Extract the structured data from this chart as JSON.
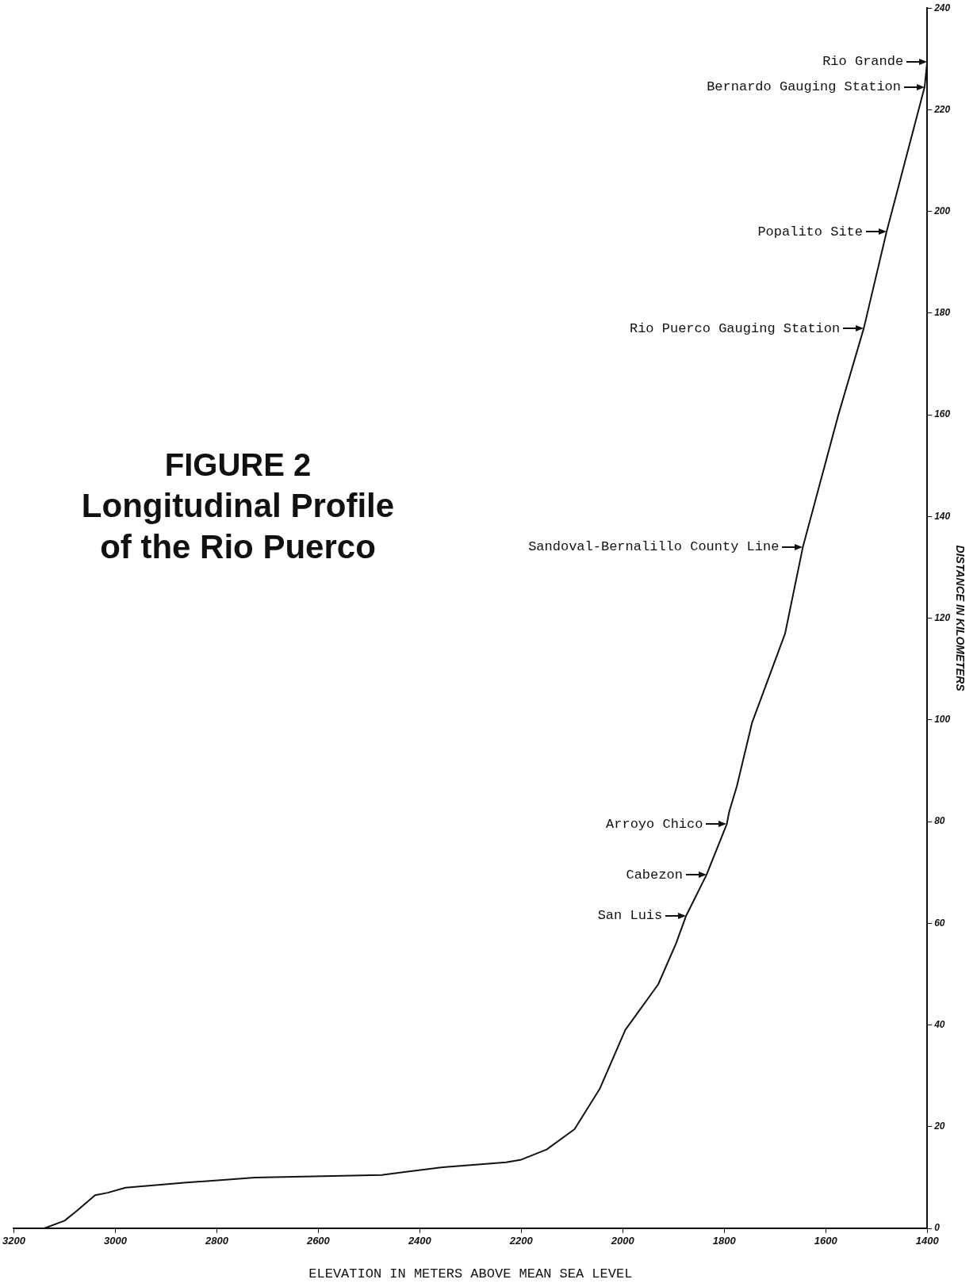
{
  "chart_data": {
    "type": "line",
    "title": "FIGURE 2",
    "subtitle": "Longitudinal Profile of the Rio Puerco",
    "xlabel": "ELEVATION IN METERS ABOVE MEAN SEA LEVEL",
    "ylabel": "DISTANCE IN KILOMETERS",
    "x": [
      3140,
      3100,
      3075,
      3040,
      3015,
      2980,
      2860,
      2725,
      2475,
      2355,
      2230,
      2200,
      2150,
      2095,
      2045,
      1995,
      1930,
      1895,
      1875,
      1835,
      1795,
      1790,
      1775,
      1745,
      1680,
      1645,
      1575,
      1525,
      1480,
      1405,
      1400
    ],
    "series": [
      {
        "color": "#111111",
        "values": [
          0,
          1.5,
          3.5,
          6.5,
          7,
          8,
          9,
          10,
          10.5,
          12,
          13,
          13.5,
          15.5,
          19.5,
          27.5,
          39,
          48,
          56,
          61.5,
          69.5,
          79.5,
          82,
          87,
          99.5,
          117,
          134,
          160,
          177,
          196,
          224.5,
          229.5
        ]
      }
    ],
    "xlim": [
      3200,
      1400
    ],
    "xticks": [
      3200,
      3000,
      2800,
      2600,
      2400,
      2200,
      2000,
      1800,
      1600,
      1400
    ],
    "ylim": [
      0,
      240
    ],
    "yticks": [
      0,
      20,
      40,
      60,
      80,
      100,
      120,
      140,
      160,
      180,
      200,
      220,
      240
    ],
    "grid": false,
    "legend": false,
    "marker": "none",
    "line_style": "solid",
    "annotations": [
      {
        "text": "San Luis",
        "x": 1875,
        "y": 61.5
      },
      {
        "text": "Cabezon",
        "x": 1835,
        "y": 69.5
      },
      {
        "text": "Arroyo Chico",
        "x": 1795,
        "y": 79.5
      },
      {
        "text": "Sandoval-Bernalillo County Line",
        "x": 1645,
        "y": 134
      },
      {
        "text": "Rio Puerco Gauging Station",
        "x": 1525,
        "y": 177
      },
      {
        "text": "Popalito Site",
        "x": 1480,
        "y": 196
      },
      {
        "text": "Bernardo Gauging Station",
        "x": 1405,
        "y": 224.5
      },
      {
        "text": "Rio Grande",
        "x": 1400,
        "y": 229.5
      }
    ]
  }
}
